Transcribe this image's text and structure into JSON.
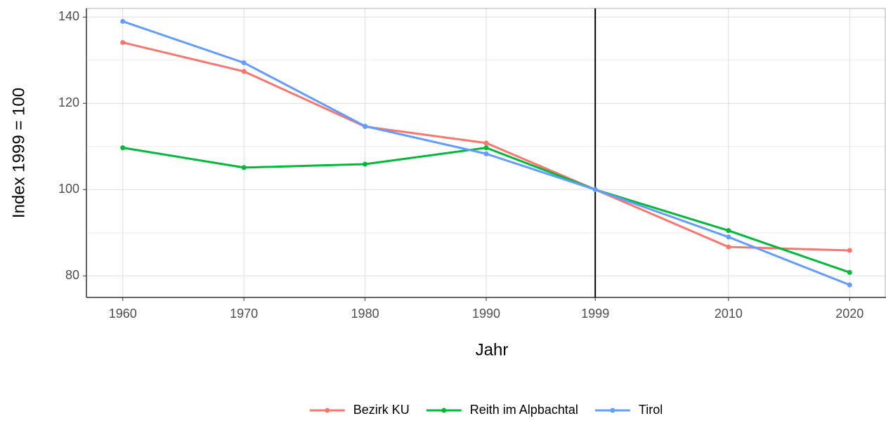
{
  "chart_data": {
    "type": "line",
    "x_label": "Jahr",
    "y_label": "Index 1999 = 100",
    "x": [
      1960,
      1970,
      1980,
      1990,
      1999,
      2010,
      2020
    ],
    "series": [
      {
        "name": "Bezirk KU",
        "color": "#F8766D",
        "values": [
          134.1,
          127.4,
          114.6,
          110.8,
          100,
          86.7,
          85.9
        ]
      },
      {
        "name": "Reith im Alpbachtal",
        "color": "#00BA38",
        "values": [
          109.7,
          105.1,
          105.9,
          109.7,
          100,
          90.5,
          80.8
        ]
      },
      {
        "name": "Tirol",
        "color": "#619CFF",
        "values": [
          139.0,
          129.4,
          114.7,
          108.3,
          100,
          89.0,
          77.9
        ]
      }
    ],
    "xlim": [
      1957,
      2023
    ],
    "xticks": [
      1960,
      1970,
      1980,
      1990,
      1999,
      2010,
      2020
    ],
    "ylim": [
      75,
      142
    ],
    "yticks": [
      80,
      100,
      120,
      140
    ],
    "yminorticks": [
      90,
      110,
      130
    ],
    "vline": 1999,
    "grid": true,
    "legend": "bottom"
  }
}
